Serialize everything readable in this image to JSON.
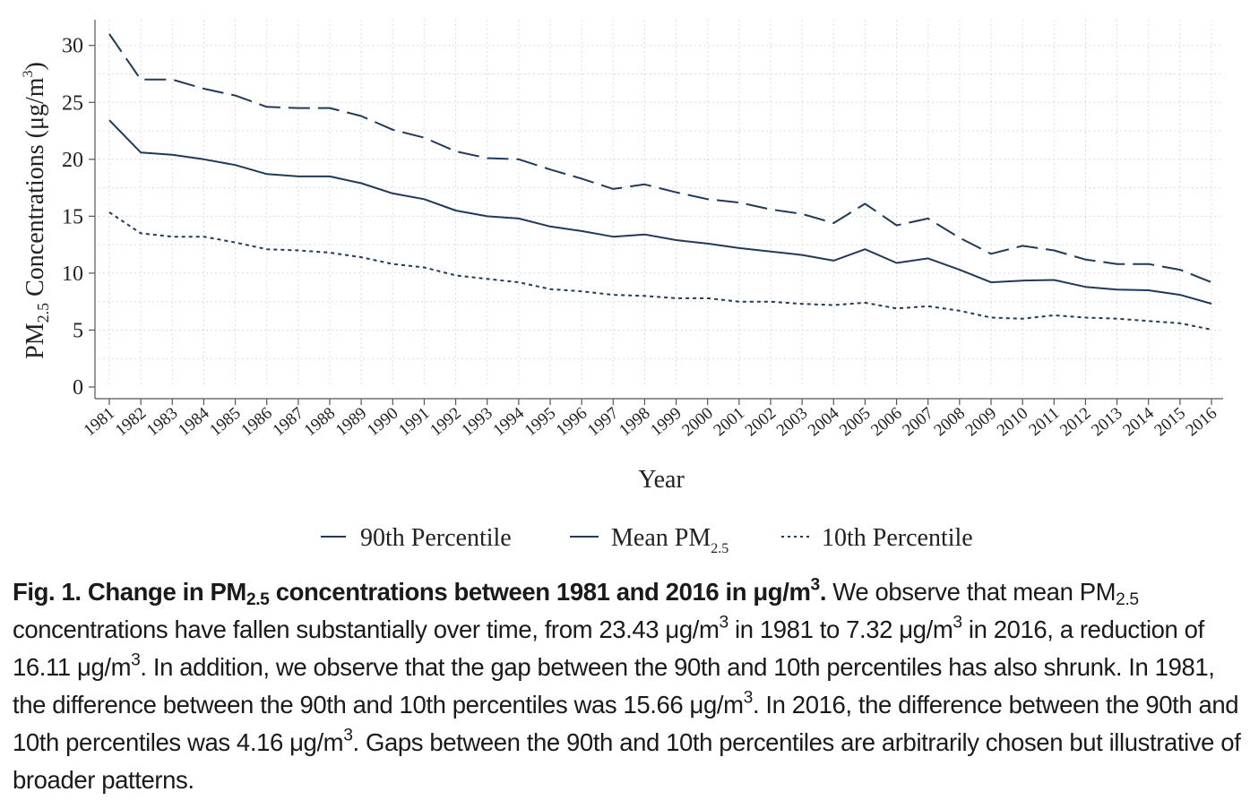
{
  "chart_data": {
    "type": "line",
    "x": [
      1981,
      1982,
      1983,
      1984,
      1985,
      1986,
      1987,
      1988,
      1989,
      1990,
      1991,
      1992,
      1993,
      1994,
      1995,
      1996,
      1997,
      1998,
      1999,
      2000,
      2001,
      2002,
      2003,
      2004,
      2005,
      2006,
      2007,
      2008,
      2009,
      2010,
      2011,
      2012,
      2013,
      2014,
      2015,
      2016
    ],
    "xlabel": "Year",
    "ylabel": "PM2.5 Concentrations (μg/m3)",
    "ylim": [
      0,
      31
    ],
    "yticks": [
      0,
      5,
      10,
      15,
      20,
      25,
      30
    ],
    "grid": true,
    "legend_position": "bottom",
    "series": [
      {
        "name": "90th Percentile",
        "style": "dashed",
        "values": [
          31.0,
          27.0,
          27.0,
          26.2,
          25.6,
          24.6,
          24.5,
          24.5,
          23.8,
          22.6,
          21.9,
          20.7,
          20.1,
          20.0,
          19.1,
          18.3,
          17.4,
          17.8,
          17.1,
          16.5,
          16.2,
          15.6,
          15.2,
          14.4,
          16.1,
          14.2,
          14.8,
          13.1,
          11.7,
          12.4,
          12.0,
          11.2,
          10.8,
          10.8,
          10.3,
          9.2
        ]
      },
      {
        "name": "Mean PM2.5",
        "style": "solid",
        "values": [
          23.43,
          20.6,
          20.4,
          20.0,
          19.5,
          18.7,
          18.5,
          18.5,
          17.9,
          17.0,
          16.5,
          15.5,
          15.0,
          14.8,
          14.1,
          13.7,
          13.2,
          13.4,
          12.9,
          12.6,
          12.2,
          11.9,
          11.6,
          11.1,
          12.1,
          10.9,
          11.3,
          10.3,
          9.2,
          9.35,
          9.4,
          8.8,
          8.55,
          8.5,
          8.1,
          7.32
        ]
      },
      {
        "name": "10th Percentile",
        "style": "dotted",
        "values": [
          15.34,
          13.5,
          13.2,
          13.2,
          12.7,
          12.1,
          12.0,
          11.8,
          11.4,
          10.8,
          10.5,
          9.8,
          9.5,
          9.2,
          8.6,
          8.4,
          8.1,
          8.0,
          7.8,
          7.8,
          7.5,
          7.5,
          7.3,
          7.2,
          7.4,
          6.9,
          7.1,
          6.7,
          6.1,
          6.0,
          6.3,
          6.1,
          6.0,
          5.8,
          5.6,
          5.04
        ]
      }
    ],
    "colors": {
      "line": "#1f3a5a",
      "grid": "#dcdcdc",
      "axis": "#555555"
    }
  },
  "axis_text": {
    "y_prefix": "PM",
    "y_sub": "2.5",
    "y_mid": " Concentrations (μg/m",
    "y_sup": "3",
    "y_suffix": ")"
  },
  "legend": {
    "item1": "90th Percentile",
    "item2_main": "Mean PM",
    "item2_sub": "2.5",
    "item3": "10th Percentile"
  },
  "caption": {
    "bold_a": "Fig. 1. Change in PM",
    "bold_sub": "2.5",
    "bold_b": " concentrations between 1981 and 2016 in μg/m",
    "bold_sup": "3",
    "bold_c": ".",
    "t1": " We observe that mean PM",
    "t1_sub": "2.5",
    "t2": " concentrations have fallen substantially over time, from 23.43 μg/m",
    "t2_sup": "3",
    "t3": " in 1981 to 7.32 μg/m",
    "t3_sup": "3",
    "t4": " in 2016, a reduction of 16.11 μg/m",
    "t4_sup": "3",
    "t5": ". In addition, we observe that the gap between the 90th and 10th percentiles has also shrunk. In 1981, the difference between the 90th and 10th percentiles was 15.66 μg/m",
    "t5_sup": "3",
    "t6": ". In 2016, the difference between the 90th and 10th percentiles was 4.16 μg/m",
    "t6_sup": "3",
    "t7": ". Gaps between the 90th and 10th percentiles are arbitrarily chosen but illustrative of broader patterns."
  }
}
